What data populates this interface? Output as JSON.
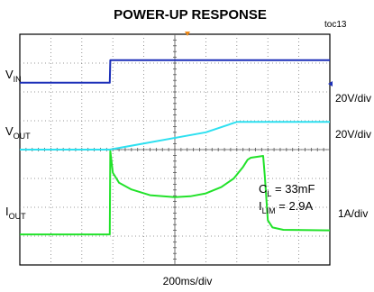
{
  "chart_data": {
    "type": "line",
    "title": "POWER-UP RESPONSE",
    "tag": "toc13",
    "xlabel": "200ms/div",
    "x_divisions": 10,
    "y_divisions": 8,
    "grid": true,
    "channels": [
      {
        "name_main": "V",
        "name_sub": "IN",
        "scale": "20V/div",
        "color": "#1c2fb8"
      },
      {
        "name_main": "V",
        "name_sub": "OUT",
        "scale": "20V/div",
        "color": "#2ee0f0"
      },
      {
        "name_main": "I",
        "name_sub": "OUT",
        "scale": "1A/div",
        "color": "#22e22a"
      }
    ],
    "annotations": [
      {
        "main": "C",
        "sub": "L",
        "value": " = 33mF"
      },
      {
        "main": "I",
        "sub": "LIM",
        "value": " = 2.9A"
      }
    ],
    "series": [
      {
        "name": "VIN",
        "color": "#1c2fb8",
        "points": [
          [
            0,
            6.32
          ],
          [
            2.9,
            6.32
          ],
          [
            2.92,
            7.1
          ],
          [
            10,
            7.1
          ]
        ]
      },
      {
        "name": "VOUT",
        "color": "#2ee0f0",
        "points": [
          [
            0,
            4.0
          ],
          [
            2.9,
            4.0
          ],
          [
            6.0,
            4.6
          ],
          [
            7.0,
            4.96
          ],
          [
            10,
            4.96
          ]
        ]
      },
      {
        "name": "IOUT",
        "color": "#22e22a",
        "points": [
          [
            0,
            1.06
          ],
          [
            2.9,
            1.06
          ],
          [
            2.92,
            3.95
          ],
          [
            3.0,
            3.2
          ],
          [
            3.2,
            2.85
          ],
          [
            3.6,
            2.62
          ],
          [
            4.2,
            2.42
          ],
          [
            5.0,
            2.35
          ],
          [
            5.5,
            2.38
          ],
          [
            6.0,
            2.48
          ],
          [
            6.5,
            2.7
          ],
          [
            6.9,
            3.0
          ],
          [
            7.2,
            3.4
          ],
          [
            7.35,
            3.65
          ],
          [
            7.45,
            3.72
          ],
          [
            7.85,
            3.78
          ],
          [
            7.9,
            3.1
          ],
          [
            8.0,
            1.55
          ],
          [
            8.15,
            1.3
          ],
          [
            8.5,
            1.22
          ],
          [
            10,
            1.2
          ]
        ]
      }
    ]
  }
}
